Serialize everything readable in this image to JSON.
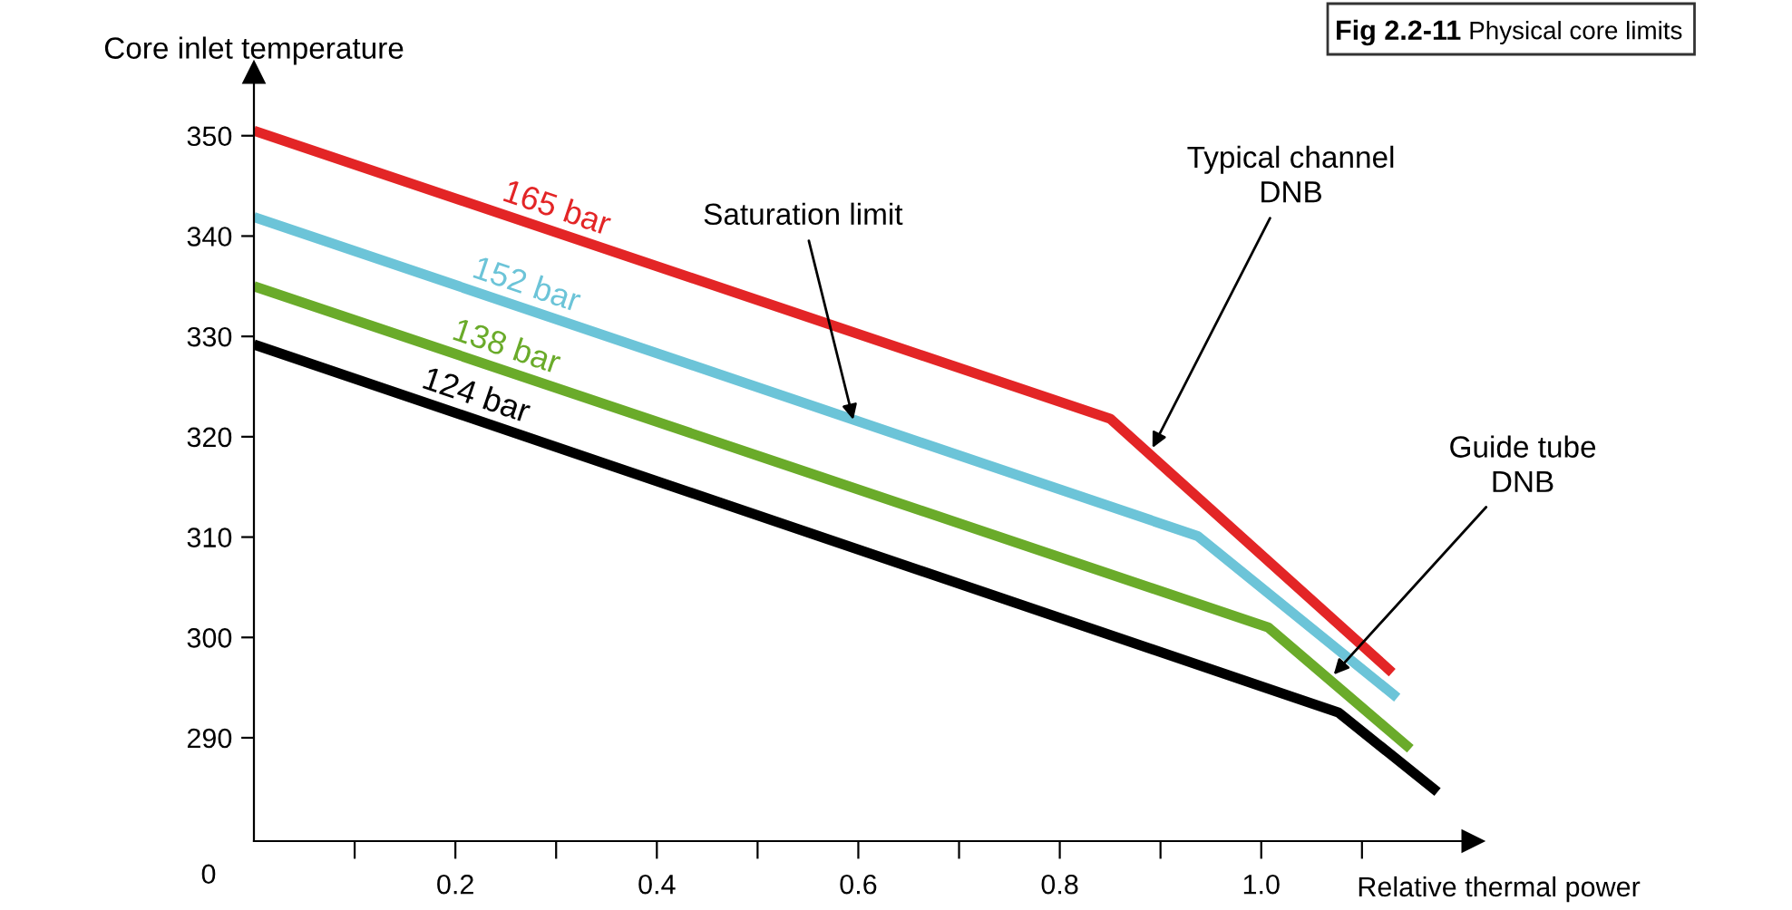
{
  "chart_data": {
    "type": "line",
    "title": "Fig 2.2-11 Physical core limits",
    "xlabel": "Relative thermal power",
    "ylabel": "Core inlet temperature",
    "xlim": [
      0,
      1.21
    ],
    "ylim": [
      279.7,
      356.3
    ],
    "xticks": [
      {
        "value": 0.1,
        "label": null
      },
      0.2,
      {
        "value": 0.3,
        "label": null
      },
      0.4,
      {
        "value": 0.5,
        "label": null
      },
      0.6,
      {
        "value": 0.7,
        "label": null
      },
      0.8,
      {
        "value": 0.9,
        "label": null
      },
      {
        "value": 1.0,
        "label": "1.0"
      },
      {
        "value": 1.1,
        "label": null
      }
    ],
    "yticks": [
      290,
      300,
      310,
      320,
      330,
      340,
      350
    ],
    "grid": false,
    "marker": "none",
    "line_style": "solid",
    "series": [
      {
        "name": "165 bar",
        "color": "#e32526",
        "x": [
          0,
          0.85,
          1.13
        ],
        "values": [
          350.5,
          321.8,
          296.5
        ]
      },
      {
        "name": "152 bar",
        "color": "#6cc4d8",
        "x": [
          0,
          0.937,
          1.135
        ],
        "values": [
          341.9,
          310.1,
          294.0
        ]
      },
      {
        "name": "138 bar",
        "color": "#6aab2a",
        "x": [
          0,
          1.007,
          1.148
        ],
        "values": [
          335.0,
          301.0,
          288.9
        ]
      },
      {
        "name": "124 bar",
        "color": "#000000",
        "x": [
          0,
          1.077,
          1.175
        ],
        "values": [
          329.2,
          292.5,
          284.6
        ]
      }
    ],
    "annotations": [
      {
        "text": "Saturation limit",
        "x": 0.595,
        "y": 321.7
      },
      {
        "text": "Typical channel\nDNB",
        "x": 0.892,
        "y": 318.9
      },
      {
        "text": "Guide tube\nDNB",
        "x": 1.072,
        "y": 296.3
      },
      "0"
    ]
  }
}
